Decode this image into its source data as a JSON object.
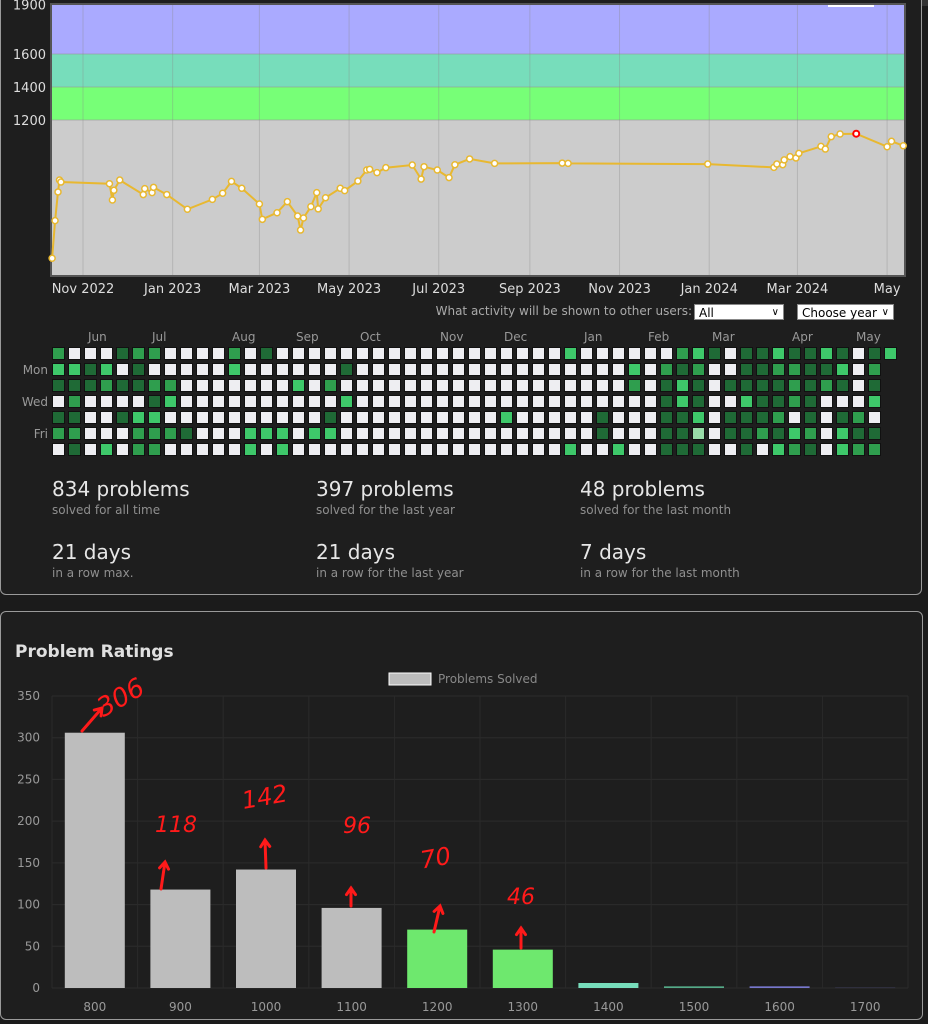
{
  "rating_chart": {
    "type": "line",
    "y_ticks": [
      "1200",
      "1400",
      "1600",
      "1900"
    ],
    "x_ticks": [
      "Nov 2022",
      "Jan 2023",
      "Mar 2023",
      "May 2023",
      "Jul 2023",
      "Sep 2023",
      "Nov 2023",
      "Jan 2024",
      "Mar 2024",
      "May"
    ],
    "ylim": [
      260,
      1910
    ],
    "bands": [
      {
        "from": 0,
        "to": 1200,
        "color": "#cccccc"
      },
      {
        "from": 1200,
        "to": 1400,
        "color": "#77ff77"
      },
      {
        "from": 1400,
        "to": 1600,
        "color": "#77ddbb"
      },
      {
        "from": 1600,
        "to": 2000,
        "color": "#aaaaff"
      }
    ],
    "line_color": "#e8b830",
    "highlight_color": "#ff0000",
    "points": [
      [
        "2022-10-11",
        362
      ],
      [
        "2022-10-13",
        590
      ],
      [
        "2022-10-15",
        764
      ],
      [
        "2022-10-16",
        836
      ],
      [
        "2022-10-17",
        824
      ],
      [
        "2022-11-19",
        814
      ],
      [
        "2022-11-21",
        715
      ],
      [
        "2022-11-22",
        774
      ],
      [
        "2022-11-26",
        836
      ],
      [
        "2022-12-12",
        748
      ],
      [
        "2022-12-13",
        784
      ],
      [
        "2022-12-18",
        760
      ],
      [
        "2022-12-19",
        792
      ],
      [
        "2022-12-28",
        748
      ],
      [
        "2023-01-11",
        659
      ],
      [
        "2023-01-28",
        719
      ],
      [
        "2023-02-04",
        756
      ],
      [
        "2023-02-10",
        828
      ],
      [
        "2023-02-17",
        786
      ],
      [
        "2023-03-01",
        691
      ],
      [
        "2023-03-03",
        598
      ],
      [
        "2023-03-13",
        638
      ],
      [
        "2023-03-20",
        705
      ],
      [
        "2023-03-27",
        618
      ],
      [
        "2023-03-29",
        533
      ],
      [
        "2023-03-31",
        606
      ],
      [
        "2023-04-05",
        675
      ],
      [
        "2023-04-09",
        760
      ],
      [
        "2023-04-10",
        661
      ],
      [
        "2023-04-15",
        729
      ],
      [
        "2023-04-25",
        786
      ],
      [
        "2023-04-28",
        772
      ],
      [
        "2023-05-07",
        830
      ],
      [
        "2023-05-13",
        897
      ],
      [
        "2023-05-15",
        901
      ],
      [
        "2023-05-20",
        881
      ],
      [
        "2023-05-26",
        911
      ],
      [
        "2023-06-13",
        927
      ],
      [
        "2023-06-19",
        842
      ],
      [
        "2023-06-21",
        917
      ],
      [
        "2023-06-30",
        897
      ],
      [
        "2023-07-08",
        851
      ],
      [
        "2023-07-12",
        929
      ],
      [
        "2023-07-22",
        964
      ],
      [
        "2023-08-08",
        937
      ],
      [
        "2023-09-23",
        939
      ],
      [
        "2023-09-27",
        937
      ],
      [
        "2023-12-31",
        933
      ],
      [
        "2024-02-14",
        913
      ],
      [
        "2024-02-16",
        933
      ],
      [
        "2024-02-20",
        929
      ],
      [
        "2024-02-21",
        958
      ],
      [
        "2024-02-25",
        978
      ],
      [
        "2024-02-29",
        970
      ],
      [
        "2024-03-02",
        998
      ],
      [
        "2024-03-17",
        1040
      ],
      [
        "2024-03-20",
        1024
      ],
      [
        "2024-03-24",
        1099
      ],
      [
        "2024-03-30",
        1115
      ],
      [
        "2024-04-10",
        1117
      ],
      [
        "2024-05-01",
        1038
      ],
      [
        "2024-05-04",
        1071
      ],
      [
        "2024-05-12",
        1044
      ]
    ],
    "max_point_date": "2024-04-10"
  },
  "activity": {
    "visibility_label": "What activity will be shown to other users:",
    "visibility_value": "All",
    "year_value": "Choose year",
    "months": [
      "Jun",
      "Jul",
      "Aug",
      "Sep",
      "Oct",
      "Nov",
      "Dec",
      "Jan",
      "Feb",
      "Mar",
      "Apr",
      "May"
    ],
    "weekdays": [
      "Mon",
      "Wed",
      "Fri"
    ],
    "level_colors": {
      ".": "#eeeef2",
      "a": "#98dca8",
      "b": "#3ec86a",
      "c": "#2f9e4e",
      "d": "#1f6a36"
    },
    "grid": [
      "c...dcc....c.d..................b......cbd.ddbddbd.db",
      "bbdb.d.....b......d.................b.cdc..ddccddb.c ",
      "dddcddcc.......b.c..................c.dbd.ddddcdcd.d ",
      ".c....db..........b...................dbd..bddcd...b ",
      "dd..dbb..........d..........b.....d...ddb.dddc.d.dc. ",
      "cc...cccd...bbb.bb................d...dda.ddcdbc.bdd ",
      ".d.b.cc.....b.b.................b..b..ddd..d.bcd.bcc "
    ]
  },
  "stats": [
    {
      "value": "834 problems",
      "caption": "solved for all time"
    },
    {
      "value": "397 problems",
      "caption": "solved for the last year"
    },
    {
      "value": "48 problems",
      "caption": "solved for the last month"
    },
    {
      "value": "21 days",
      "caption": "in a row max."
    },
    {
      "value": "21 days",
      "caption": "in a row for the last year"
    },
    {
      "value": "7 days",
      "caption": "in a row for the last month"
    }
  ],
  "problem_ratings": {
    "title": "Problem Ratings",
    "chart_data": {
      "type": "bar",
      "legend": [
        "Problems Solved"
      ],
      "legend_placement": "top",
      "categories": [
        "800",
        "900",
        "1000",
        "1100",
        "1200",
        "1300",
        "1400",
        "1500",
        "1600",
        "1700"
      ],
      "series": [
        {
          "name": "Problems Solved",
          "values": [
            306,
            118,
            142,
            96,
            70,
            46,
            6,
            2,
            2,
            1
          ]
        }
      ],
      "colors": [
        "#bdbdbd",
        "#bdbdbd",
        "#bdbdbd",
        "#bdbdbd",
        "#6ee86e",
        "#6ee86e",
        "#77ddbb",
        "#55aa88",
        "#7777cc",
        "#333344"
      ],
      "y_ticks": [
        "0",
        "50",
        "100",
        "150",
        "200",
        "250",
        "300",
        "350"
      ],
      "ylim": [
        0,
        350
      ],
      "grid": true
    },
    "annotations": [
      "306",
      "118",
      "142",
      "96",
      "70",
      "46"
    ],
    "annotation_color": "#ff1a1a"
  }
}
